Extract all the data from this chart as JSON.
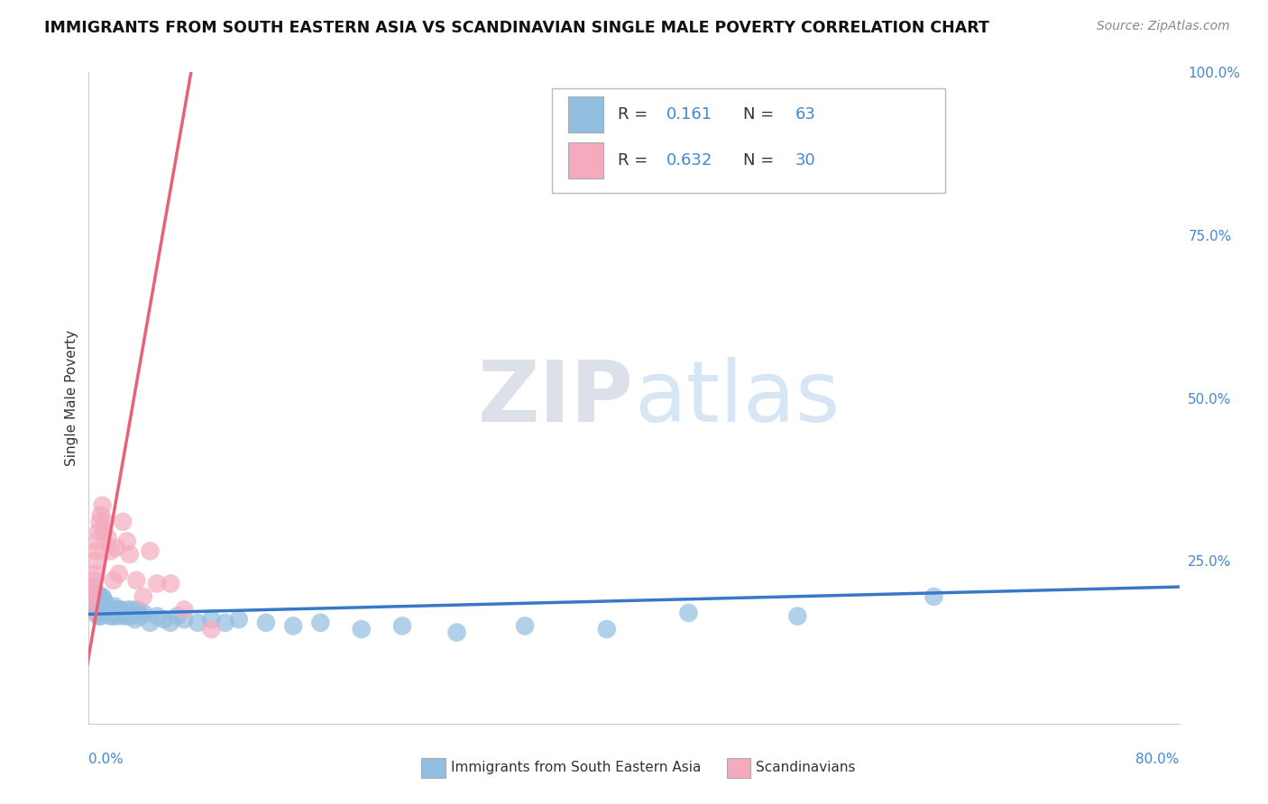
{
  "title": "IMMIGRANTS FROM SOUTH EASTERN ASIA VS SCANDINAVIAN SINGLE MALE POVERTY CORRELATION CHART",
  "source": "Source: ZipAtlas.com",
  "ylabel": "Single Male Poverty",
  "right_yticks": [
    "100.0%",
    "75.0%",
    "50.0%",
    "25.0%"
  ],
  "right_ytick_vals": [
    1.0,
    0.75,
    0.5,
    0.25
  ],
  "legend1_R": "0.161",
  "legend1_N": "63",
  "legend2_R": "0.632",
  "legend2_N": "30",
  "legend_bottom1": "Immigrants from South Eastern Asia",
  "legend_bottom2": "Scandinavians",
  "blue_color": "#92BEE0",
  "pink_color": "#F4ABBE",
  "blue_line_color": "#3878C8",
  "pink_line_color": "#E8607A",
  "label_color": "#4488CC",
  "text_color": "#333333",
  "watermark_color": "#C8D8F0",
  "background_color": "#ffffff",
  "grid_color": "#CCCCCC",
  "blue_scatter_x": [
    0.001,
    0.002,
    0.003,
    0.003,
    0.004,
    0.004,
    0.005,
    0.005,
    0.006,
    0.006,
    0.007,
    0.007,
    0.008,
    0.008,
    0.009,
    0.009,
    0.01,
    0.01,
    0.011,
    0.011,
    0.012,
    0.012,
    0.013,
    0.014,
    0.015,
    0.016,
    0.017,
    0.018,
    0.019,
    0.02,
    0.021,
    0.022,
    0.023,
    0.025,
    0.027,
    0.028,
    0.03,
    0.032,
    0.034,
    0.036,
    0.038,
    0.04,
    0.045,
    0.05,
    0.055,
    0.06,
    0.065,
    0.07,
    0.08,
    0.09,
    0.1,
    0.11,
    0.13,
    0.15,
    0.17,
    0.2,
    0.23,
    0.27,
    0.32,
    0.38,
    0.44,
    0.52,
    0.62
  ],
  "blue_scatter_y": [
    0.175,
    0.195,
    0.18,
    0.21,
    0.185,
    0.2,
    0.175,
    0.195,
    0.17,
    0.2,
    0.165,
    0.19,
    0.18,
    0.195,
    0.165,
    0.185,
    0.175,
    0.195,
    0.17,
    0.19,
    0.175,
    0.185,
    0.17,
    0.18,
    0.175,
    0.165,
    0.175,
    0.165,
    0.18,
    0.17,
    0.175,
    0.165,
    0.175,
    0.17,
    0.165,
    0.175,
    0.165,
    0.175,
    0.16,
    0.175,
    0.165,
    0.17,
    0.155,
    0.165,
    0.16,
    0.155,
    0.165,
    0.16,
    0.155,
    0.16,
    0.155,
    0.16,
    0.155,
    0.15,
    0.155,
    0.145,
    0.15,
    0.14,
    0.15,
    0.145,
    0.17,
    0.165,
    0.195
  ],
  "pink_scatter_x": [
    0.001,
    0.002,
    0.002,
    0.003,
    0.004,
    0.005,
    0.005,
    0.006,
    0.006,
    0.007,
    0.008,
    0.009,
    0.01,
    0.011,
    0.012,
    0.014,
    0.016,
    0.018,
    0.02,
    0.022,
    0.025,
    0.028,
    0.03,
    0.035,
    0.04,
    0.045,
    0.05,
    0.06,
    0.07,
    0.09
  ],
  "pink_scatter_y": [
    0.175,
    0.195,
    0.2,
    0.21,
    0.22,
    0.23,
    0.25,
    0.265,
    0.28,
    0.295,
    0.31,
    0.32,
    0.335,
    0.295,
    0.31,
    0.285,
    0.265,
    0.22,
    0.27,
    0.23,
    0.31,
    0.28,
    0.26,
    0.22,
    0.195,
    0.265,
    0.215,
    0.215,
    0.175,
    0.145
  ],
  "blue_line_x": [
    0.0,
    0.8
  ],
  "blue_line_y": [
    0.168,
    0.21
  ],
  "pink_line_x": [
    -0.002,
    0.075
  ],
  "pink_line_y": [
    0.08,
    1.0
  ],
  "xmin": 0.0,
  "xmax": 0.8,
  "ymin": 0.0,
  "ymax": 1.0,
  "xlabels_x": [
    0.0,
    0.8
  ],
  "xlabels_text": [
    "0.0%",
    "80.0%"
  ]
}
